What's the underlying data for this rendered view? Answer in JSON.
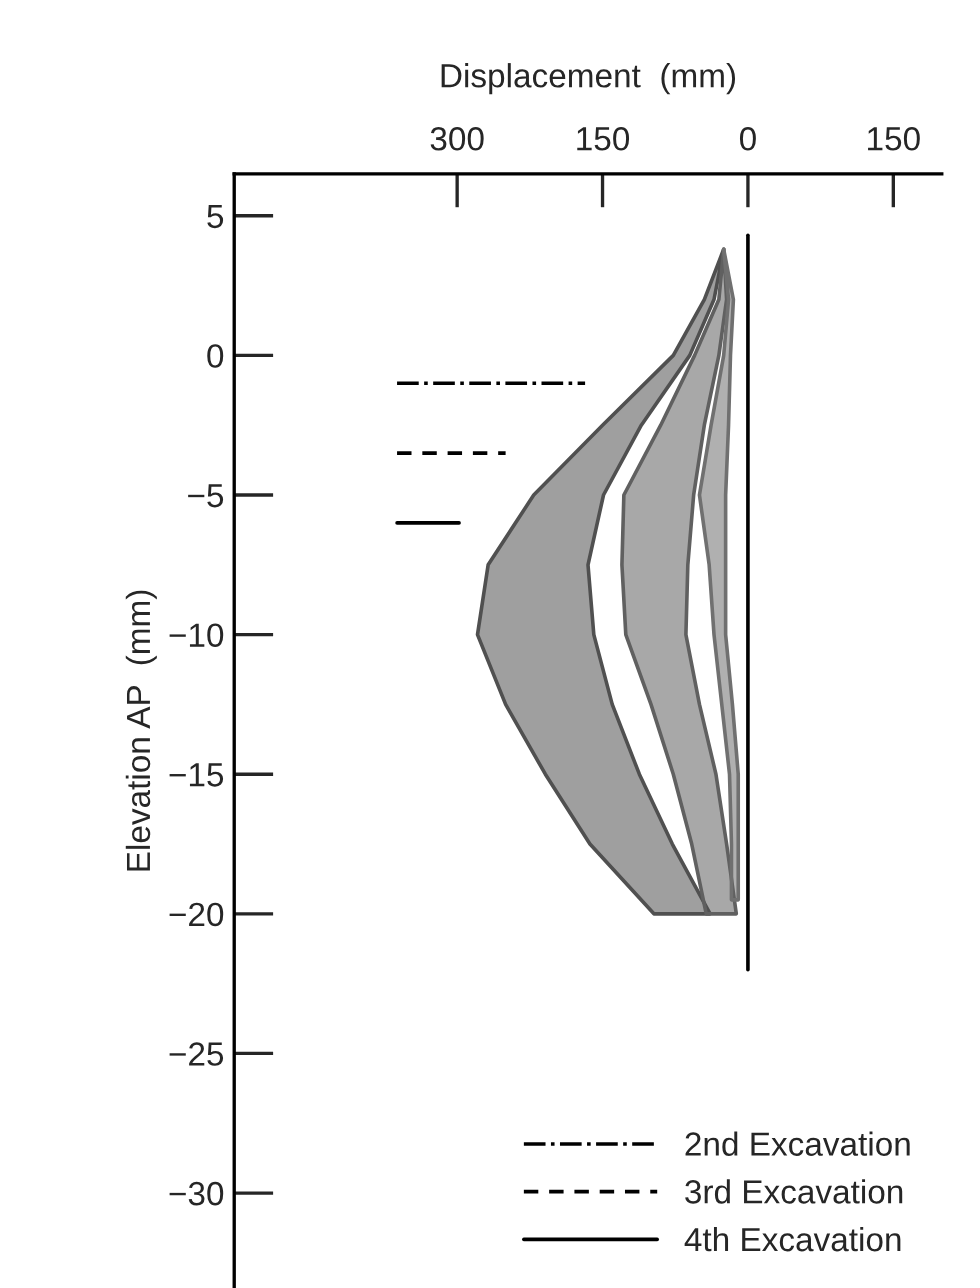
{
  "chart_data": {
    "type": "line",
    "xlabel": "Displacement  (mm)",
    "ylabel": "Elevation AP  (mm)",
    "xlim": [
      530,
      -200
    ],
    "xticks": [
      300,
      150,
      0,
      {
        "value": -150,
        "label": "150"
      }
    ],
    "ylim": [
      -33.4,
      6.5
    ],
    "yticks": [
      5,
      0,
      {
        "value": -5,
        "label": "−5"
      },
      {
        "value": -10,
        "label": "−10"
      },
      {
        "value": -15,
        "label": "−15"
      },
      {
        "value": -20,
        "label": "−20"
      },
      {
        "value": -25,
        "label": "−25"
      },
      {
        "value": -30,
        "label": "−30"
      }
    ],
    "grid": false,
    "legend": "bottom right",
    "series": [
      {
        "type": "area",
        "color": "#505050",
        "x": [
          25,
          45,
          77,
          150,
          221,
          268,
          279,
          250,
          209,
          163,
          97,
          39,
          78,
          112,
          140,
          159,
          165,
          149,
          110,
          60,
          35,
          25
        ],
        "values": [
          3.8,
          2,
          0,
          -2.5,
          -5,
          -7.5,
          -10,
          -12.5,
          -15,
          -17.5,
          -20,
          -20,
          -17.5,
          -15,
          -12.5,
          -10,
          -7.5,
          -5,
          -2.5,
          0,
          2,
          3.8
        ]
      },
      {
        "type": "area",
        "color": "#606060",
        "x": [
          25,
          30,
          55,
          90,
          128,
          130,
          126,
          100,
          77,
          58,
          43,
          12,
          22,
          33,
          50,
          64,
          62,
          56,
          45,
          30,
          22,
          25
        ],
        "values": [
          3.8,
          2,
          0,
          -2.5,
          -5,
          -7.5,
          -10,
          -12.5,
          -15,
          -17.5,
          -20,
          -20,
          -17.5,
          -15,
          -12.5,
          -10,
          -7.5,
          -5,
          -2.5,
          0,
          2,
          3.8
        ]
      },
      {
        "type": "area",
        "color": "#707070",
        "x": [
          25,
          20,
          25,
          38,
          50,
          40,
          35,
          27,
          19,
          17,
          17,
          10,
          10,
          10,
          16,
          23,
          23,
          23,
          20,
          18,
          15,
          25
        ],
        "values": [
          3.8,
          2,
          0,
          -2.5,
          -5,
          -7.5,
          -10,
          -12.5,
          -15,
          -17.5,
          -19.5,
          -19.5,
          -17.5,
          -15,
          -12.5,
          -10,
          -7.5,
          -5,
          -2.5,
          0,
          2,
          3.8
        ]
      },
      {
        "color": "#000000",
        "line_style": "solid",
        "x": [
          0,
          0
        ],
        "values": [
          4.3,
          -22
        ]
      },
      {
        "name": "2nd Excavation",
        "color": "#000000",
        "line_style": "dashdot",
        "x": [
          362,
          168
        ],
        "values": [
          -1,
          -1
        ]
      },
      {
        "name": "3rd Excavation",
        "color": "#000000",
        "line_style": "dashed",
        "x": [
          362,
          250
        ],
        "values": [
          -3.5,
          -3.5
        ]
      },
      {
        "name": "4th Excavation",
        "color": "#000000",
        "line_style": "solid",
        "x": [
          362,
          298
        ],
        "values": [
          -6,
          -6
        ]
      }
    ]
  }
}
